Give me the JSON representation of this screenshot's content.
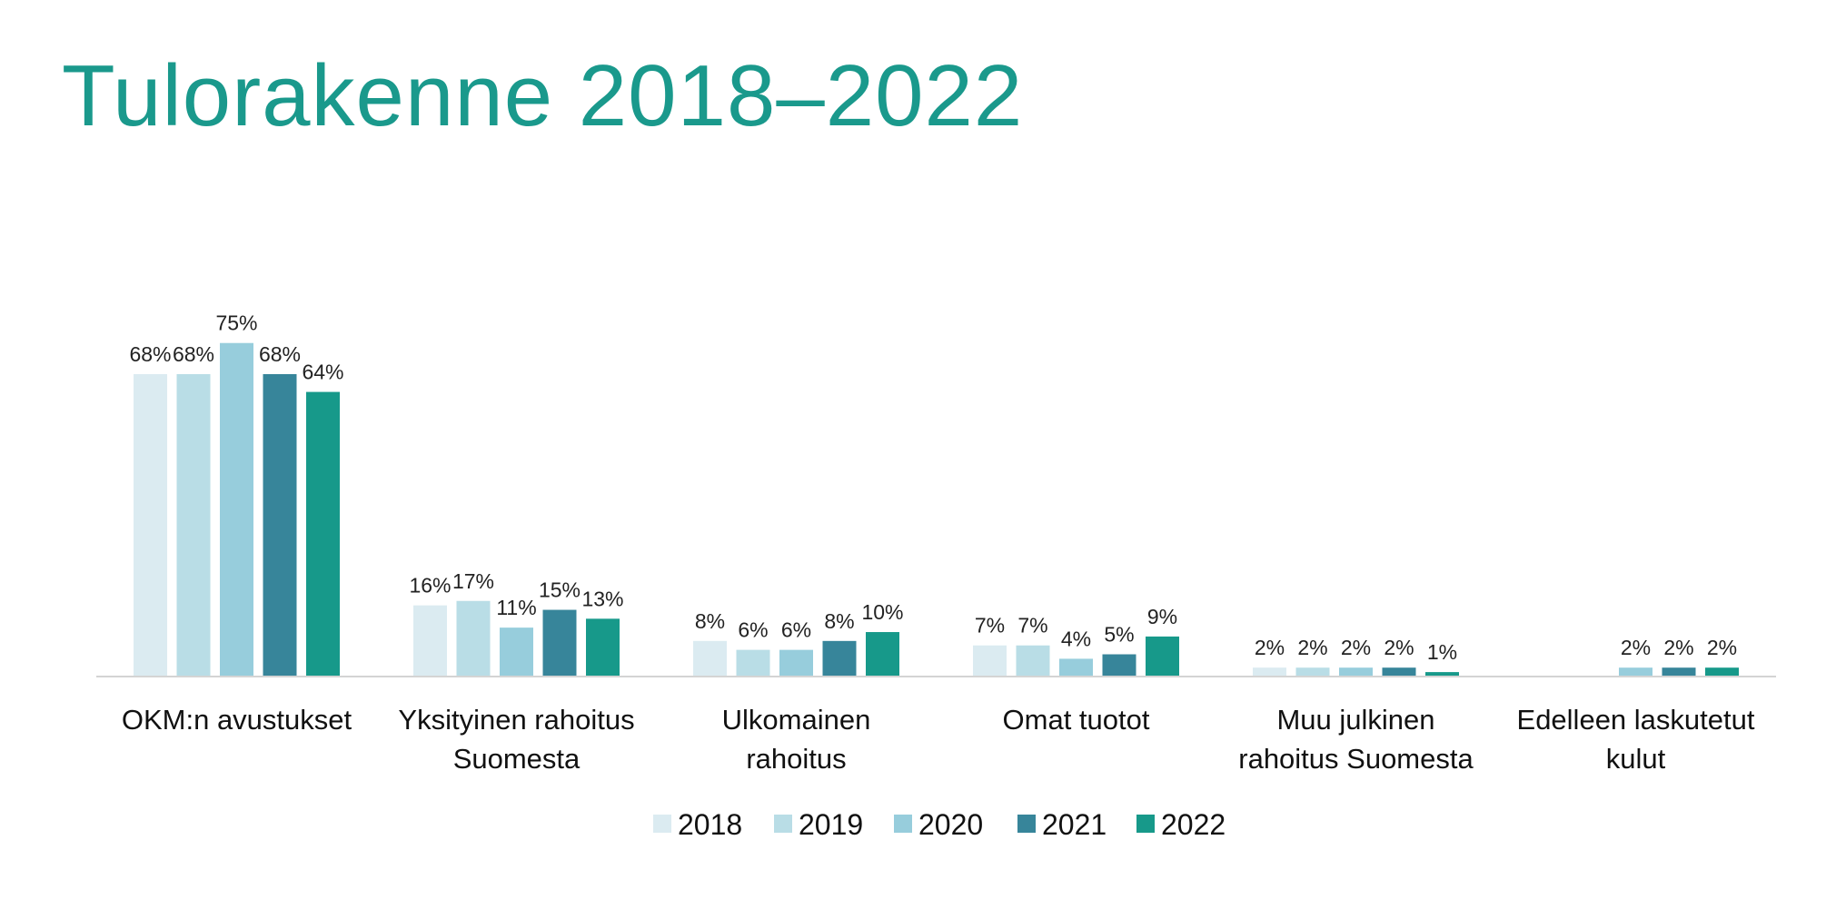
{
  "title": "Tulorakenne 2018–2022",
  "chart_data": {
    "type": "bar",
    "title": "Tulorakenne 2018–2022",
    "xlabel": "",
    "ylabel": "",
    "ylim": [
      0,
      80
    ],
    "grid": false,
    "legend_position": "bottom",
    "categories": [
      [
        "OKM:n avustukset"
      ],
      [
        "Yksityinen rahoitus",
        "Suomesta"
      ],
      [
        "Ulkomainen",
        "rahoitus"
      ],
      [
        "Omat tuotot"
      ],
      [
        "Muu julkinen",
        "rahoitus Suomesta"
      ],
      [
        "Edelleen laskutetut",
        "kulut"
      ]
    ],
    "series": [
      {
        "name": "2018",
        "color": "#dbebf1",
        "values": [
          68,
          16,
          8,
          7,
          2,
          null
        ],
        "labels": [
          "68%",
          "16%",
          "8%",
          "7%",
          "2%",
          ""
        ]
      },
      {
        "name": "2019",
        "color": "#b9dde6",
        "values": [
          68,
          17,
          6,
          7,
          2,
          null
        ],
        "labels": [
          "68%",
          "17%",
          "6%",
          "7%",
          "2%",
          ""
        ]
      },
      {
        "name": "2020",
        "color": "#97cddc",
        "values": [
          75,
          11,
          6,
          4,
          2,
          2
        ],
        "labels": [
          "75%",
          "11%",
          "6%",
          "4%",
          "2%",
          "2%"
        ]
      },
      {
        "name": "2021",
        "color": "#37859a",
        "values": [
          68,
          15,
          8,
          5,
          2,
          2
        ],
        "labels": [
          "68%",
          "15%",
          "8%",
          "5%",
          "2%",
          "2%"
        ]
      },
      {
        "name": "2022",
        "color": "#17998a",
        "values": [
          64,
          13,
          10,
          9,
          1,
          2
        ],
        "labels": [
          "64%",
          "13%",
          "10%",
          "9%",
          "1%",
          "2%"
        ]
      }
    ]
  }
}
